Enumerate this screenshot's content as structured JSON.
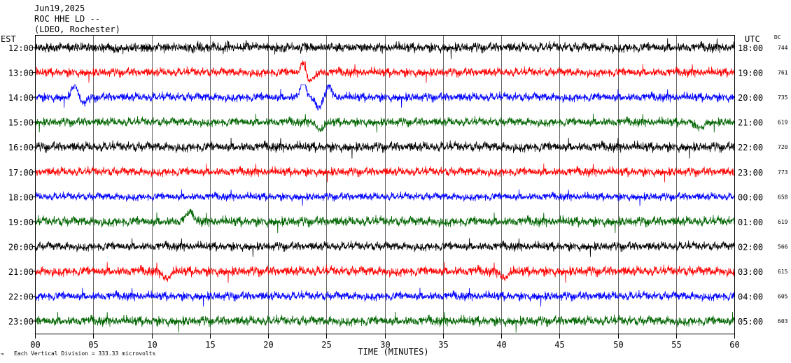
{
  "header": {
    "date": "Jun19,2025",
    "station": "ROC HHE LD --",
    "network": "(LDEO, Rochester)"
  },
  "left_axis_title": "EST",
  "right_axis_title": "UTC",
  "dc_title": "DC",
  "footer_mark": "™",
  "footer_note": "Each Vertical Division =  333.33 microvolts",
  "chart_data": {
    "type": "line",
    "title": "",
    "xlabel": "TIME (MINUTES)",
    "xlim": [
      0,
      60
    ],
    "x_ticks": [
      0,
      5,
      10,
      15,
      20,
      25,
      30,
      35,
      40,
      45,
      50,
      55,
      60
    ],
    "x_tick_labels": [
      "00",
      "05",
      "10",
      "15",
      "20",
      "25",
      "30",
      "35",
      "40",
      "45",
      "50",
      "55",
      "60"
    ],
    "grid": "vertical lines every 5 minutes",
    "colors": [
      "#000000",
      "#ff0000",
      "#0000ff",
      "#006400"
    ],
    "rows": [
      {
        "est": "12:00",
        "utc": "18:00",
        "dc": "744",
        "color": "#000000",
        "amp": 1.0,
        "events": []
      },
      {
        "est": "13:00",
        "utc": "19:00",
        "dc": "761",
        "color": "#ff0000",
        "amp": 0.9,
        "events": [
          {
            "t": 23.0,
            "a": -2.0,
            "w": 0.25
          },
          {
            "t": 23.6,
            "a": 1.2,
            "w": 0.5
          }
        ]
      },
      {
        "est": "14:00",
        "utc": "20:00",
        "dc": "735",
        "color": "#0000ff",
        "amp": 0.9,
        "events": [
          {
            "t": 3.4,
            "a": -2.0,
            "w": 0.35
          },
          {
            "t": 4.2,
            "a": 0.8,
            "w": 0.5
          },
          {
            "t": 23.0,
            "a": -3.0,
            "w": 0.3
          },
          {
            "t": 24.3,
            "a": 1.6,
            "w": 0.45
          },
          {
            "t": 25.2,
            "a": -1.8,
            "w": 0.35
          }
        ]
      },
      {
        "est": "15:00",
        "utc": "21:00",
        "dc": "619",
        "color": "#006400",
        "amp": 0.9,
        "events": [
          {
            "t": 24.5,
            "a": 1.4,
            "w": 0.4
          },
          {
            "t": 57.0,
            "a": 1.0,
            "w": 0.4
          }
        ]
      },
      {
        "est": "16:00",
        "utc": "22:00",
        "dc": "720",
        "color": "#000000",
        "amp": 1.0,
        "events": []
      },
      {
        "est": "17:00",
        "utc": "23:00",
        "dc": "773",
        "color": "#ff0000",
        "amp": 0.9,
        "events": []
      },
      {
        "est": "18:00",
        "utc": "00:00",
        "dc": "658",
        "color": "#0000ff",
        "amp": 0.8,
        "events": []
      },
      {
        "est": "19:00",
        "utc": "01:00",
        "dc": "619",
        "color": "#006400",
        "amp": 1.0,
        "events": [
          {
            "t": 13.3,
            "a": -1.3,
            "w": 0.5
          }
        ]
      },
      {
        "est": "20:00",
        "utc": "02:00",
        "dc": "566",
        "color": "#000000",
        "amp": 0.9,
        "events": []
      },
      {
        "est": "21:00",
        "utc": "03:00",
        "dc": "615",
        "color": "#ff0000",
        "amp": 1.0,
        "events": [
          {
            "t": 11.3,
            "a": 1.1,
            "w": 0.5
          },
          {
            "t": 40.3,
            "a": 1.0,
            "w": 0.5
          }
        ]
      },
      {
        "est": "22:00",
        "utc": "04:00",
        "dc": "605",
        "color": "#0000ff",
        "amp": 0.9,
        "events": []
      },
      {
        "est": "23:00",
        "utc": "05:00",
        "dc": "603",
        "color": "#006400",
        "amp": 1.0,
        "events": []
      }
    ]
  }
}
